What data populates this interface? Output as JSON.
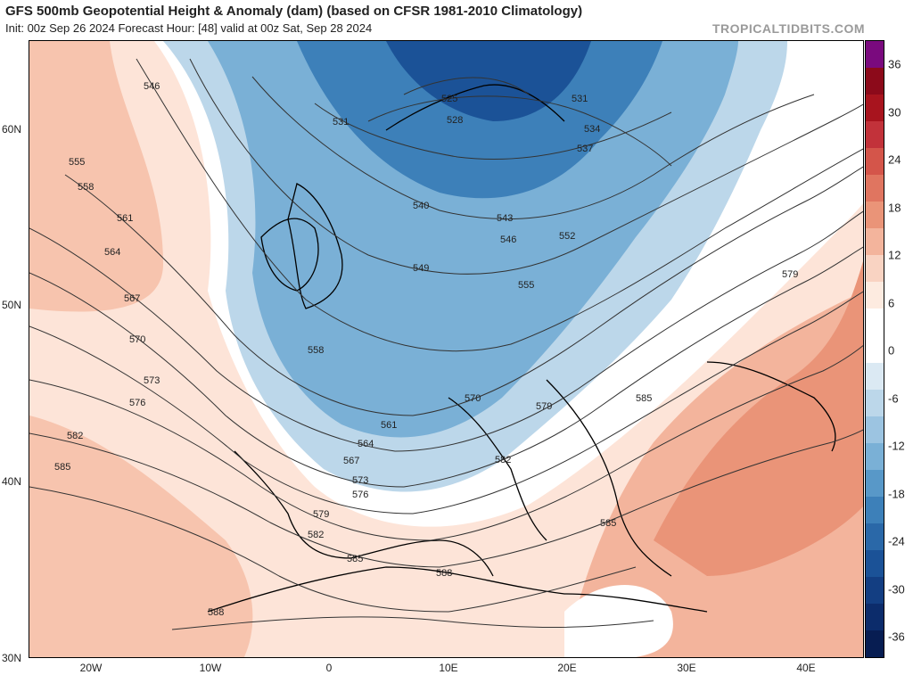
{
  "header": {
    "title": "GFS 500mb Geopotential Height & Anomaly (dam) (based on CFSR 1981-2010 Climatology)",
    "subtitle": "Init: 00z Sep 26 2024   Forecast Hour: [48]   valid at 00z Sat, Sep 28 2024",
    "brand": "TROPICALTIDBITS.COM"
  },
  "axes": {
    "latitudes": [
      {
        "label": "60N",
        "lat": 60
      },
      {
        "label": "50N",
        "lat": 50
      },
      {
        "label": "40N",
        "lat": 40
      },
      {
        "label": "30N",
        "lat": 30
      }
    ],
    "longitudes": [
      {
        "label": "20W",
        "lon": -20
      },
      {
        "label": "10W",
        "lon": -10
      },
      {
        "label": "0",
        "lon": 0
      },
      {
        "label": "10E",
        "lon": 10
      },
      {
        "label": "20E",
        "lon": 20
      },
      {
        "label": "30E",
        "lon": 30
      },
      {
        "label": "40E",
        "lon": 40
      }
    ]
  },
  "colorbar": {
    "tick_labels": [
      "36",
      "30",
      "24",
      "18",
      "12",
      "6",
      "0",
      "-6",
      "-12",
      "-18",
      "-24",
      "-30",
      "-36"
    ],
    "colors": [
      "#7a0a7e",
      "#8c0a1a",
      "#a8141e",
      "#c2323a",
      "#d4554a",
      "#e07560",
      "#ea9478",
      "#f3b49c",
      "#f9d3c2",
      "#fdebe0",
      "#ffffff",
      "#ffffff",
      "#dbe9f3",
      "#bcd7ea",
      "#9cc4e1",
      "#7ab0d6",
      "#5898c8",
      "#3d80b9",
      "#2a68a8",
      "#1b5297",
      "#133e82",
      "#0c2c6b",
      "#071d52"
    ]
  },
  "contour_labels": [
    "525",
    "528",
    "531",
    "531",
    "534",
    "537",
    "540",
    "543",
    "546",
    "546",
    "549",
    "552",
    "555",
    "555",
    "558",
    "558",
    "561",
    "561",
    "564",
    "564",
    "567",
    "567",
    "570",
    "570",
    "573",
    "573",
    "576",
    "576",
    "579",
    "579",
    "579",
    "582",
    "582",
    "582",
    "585",
    "585",
    "585",
    "585",
    "588",
    "588"
  ]
}
